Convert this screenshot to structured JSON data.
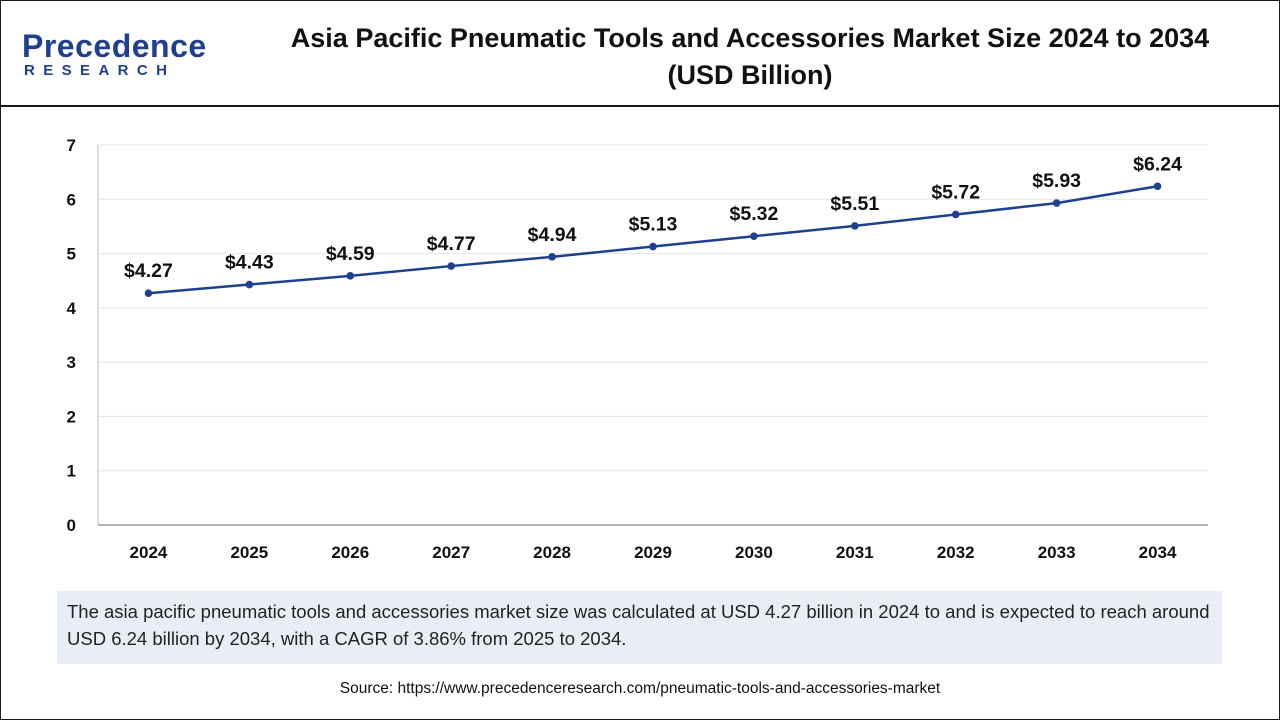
{
  "brand": {
    "logo_text": "Precedence",
    "logo_sub": "RESEARCH",
    "color": "#1f3f8f"
  },
  "header": {
    "title_line1": "Asia Pacific Pneumatic Tools and Accessories Market Size 2024 to 2034",
    "title_line2": "(USD Billion)"
  },
  "chart_data": {
    "type": "line",
    "title": "Asia Pacific Pneumatic Tools and Accessories Market Size 2024 to 2034 (USD Billion)",
    "xlabel": "",
    "ylabel": "",
    "categories": [
      "2024",
      "2025",
      "2026",
      "2027",
      "2028",
      "2029",
      "2030",
      "2031",
      "2032",
      "2033",
      "2034"
    ],
    "series": [
      {
        "values": [
          4.27,
          4.43,
          4.59,
          4.77,
          4.94,
          5.13,
          5.32,
          5.51,
          5.72,
          5.93,
          6.24
        ],
        "labels": [
          "$4.27",
          "$4.43",
          "$4.59",
          "$4.77",
          "$4.94",
          "$5.13",
          "$5.32",
          "$5.51",
          "$5.72",
          "$5.93",
          "$6.24"
        ],
        "color": "#1f3f8f"
      }
    ],
    "ylim": [
      0,
      7
    ],
    "yticks": [
      0,
      1,
      2,
      3,
      4,
      5,
      6,
      7
    ],
    "grid": true,
    "legend": "none"
  },
  "note": {
    "text": "The asia pacific pneumatic tools and accessories market size was calculated at USD 4.27 billion in 2024 to and is expected to reach around USD 6.24 billion by 2034, with a CAGR of 3.86% from 2025 to 2034."
  },
  "source": {
    "text": "Source: https://www.precedenceresearch.com/pneumatic-tools-and-accessories-market"
  }
}
